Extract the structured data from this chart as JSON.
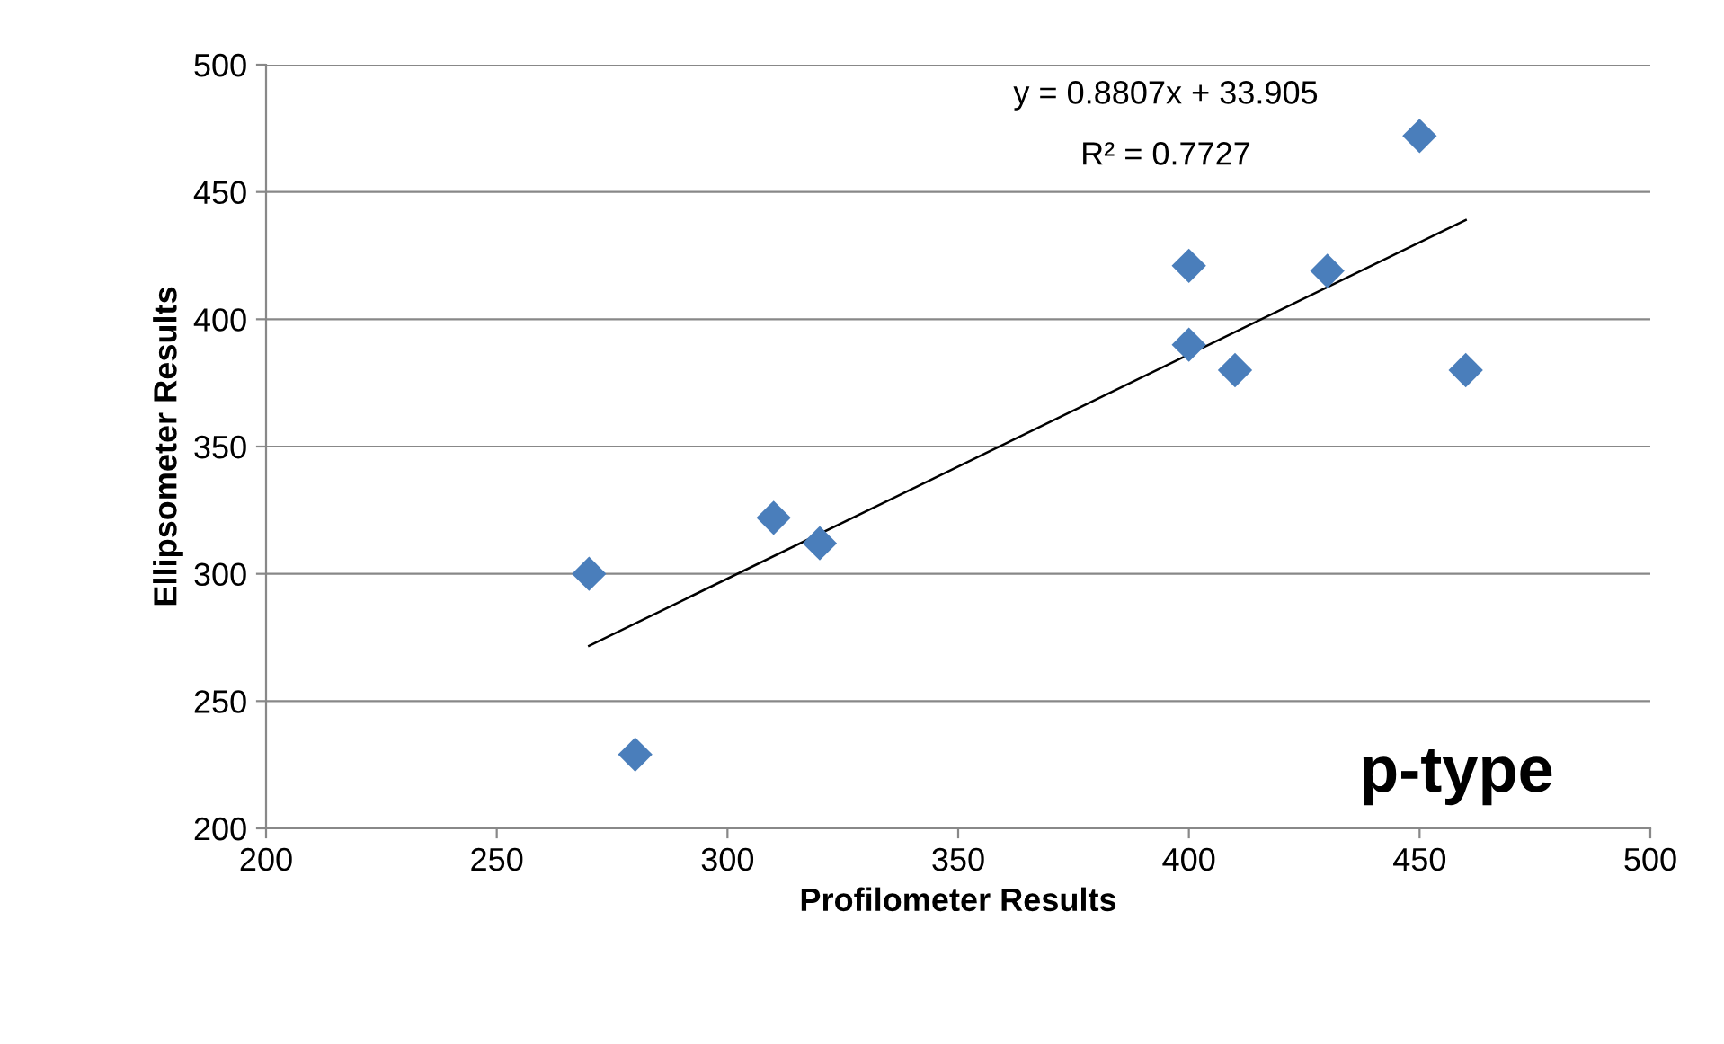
{
  "chart_data": {
    "type": "scatter",
    "xlabel": "Profilometer Results",
    "ylabel": "Ellipsometer Results",
    "xlim": [
      200,
      500
    ],
    "ylim": [
      200,
      500
    ],
    "xticks": [
      200,
      250,
      300,
      350,
      400,
      450,
      500
    ],
    "yticks": [
      200,
      250,
      300,
      350,
      400,
      450,
      500
    ],
    "grid": "y",
    "series": [
      {
        "marker": "diamond",
        "color": "#4a7ebb",
        "x": [
          270,
          280,
          310,
          320,
          400,
          400,
          410,
          430,
          450,
          460
        ],
        "values": [
          300,
          229,
          322,
          312,
          421,
          390,
          380,
          419,
          472,
          380
        ]
      },
      {
        "type": "line",
        "marker": "none",
        "color": "#000000",
        "x": [
          270,
          460
        ],
        "values": [
          271.7,
          439.0
        ]
      }
    ],
    "annotations": [
      "y = 0.8807x + 33.905",
      "R² = 0.7727",
      "p-type"
    ]
  }
}
